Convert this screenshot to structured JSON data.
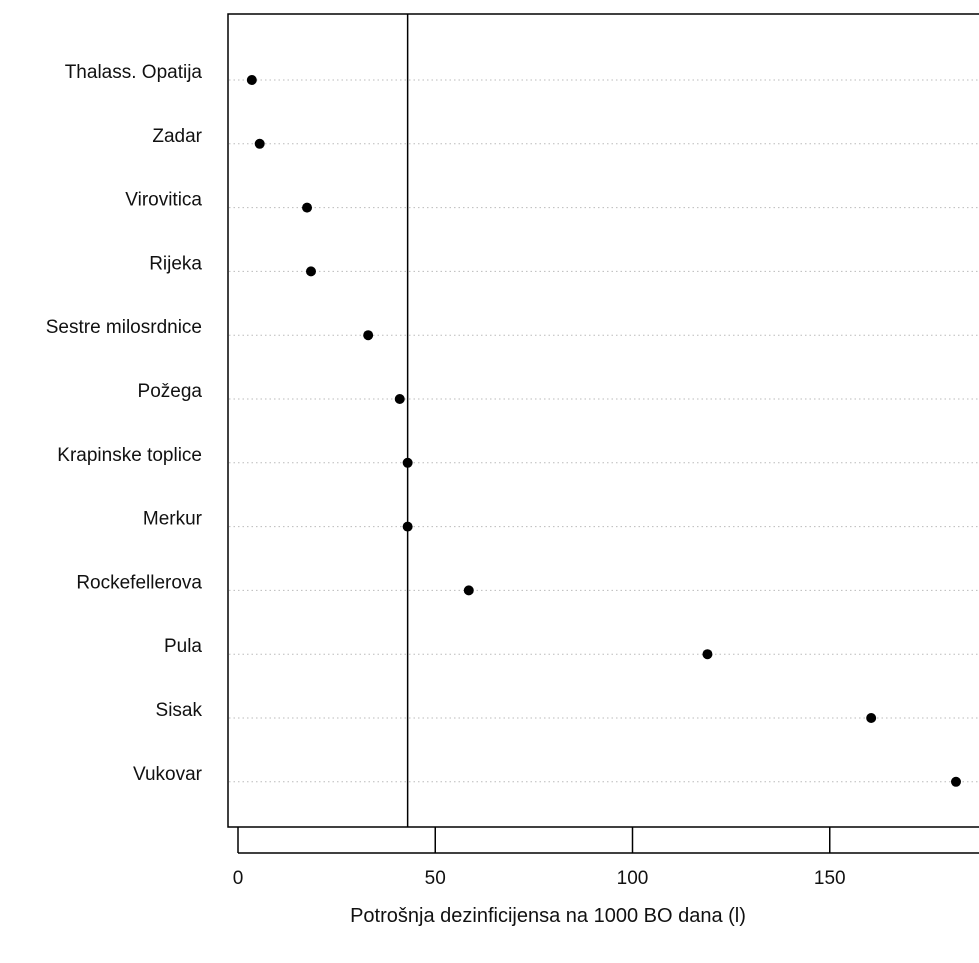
{
  "chart_data": {
    "type": "scatter",
    "xlabel": "Potrošnja dezinficijensa na 1000 BO dana (l)",
    "ylabel": "",
    "xlim": [
      -2,
      188
    ],
    "xticks": [
      0,
      50,
      100,
      150
    ],
    "reference_line": 43,
    "grid": "dotted-horizontal",
    "point_color": "#000000",
    "categories": [
      "Thalass. Opatija",
      "Zadar",
      "Virovitica",
      "Rijeka",
      "Sestre milosrdnice",
      "Požega",
      "Krapinske toplice",
      "Merkur",
      "Rockefellerova",
      "Pula",
      "Sisak",
      "Vukovar"
    ],
    "values": [
      3.5,
      5.5,
      17.5,
      18.5,
      33,
      41,
      43,
      43,
      58.5,
      119,
      160.5,
      182
    ]
  }
}
